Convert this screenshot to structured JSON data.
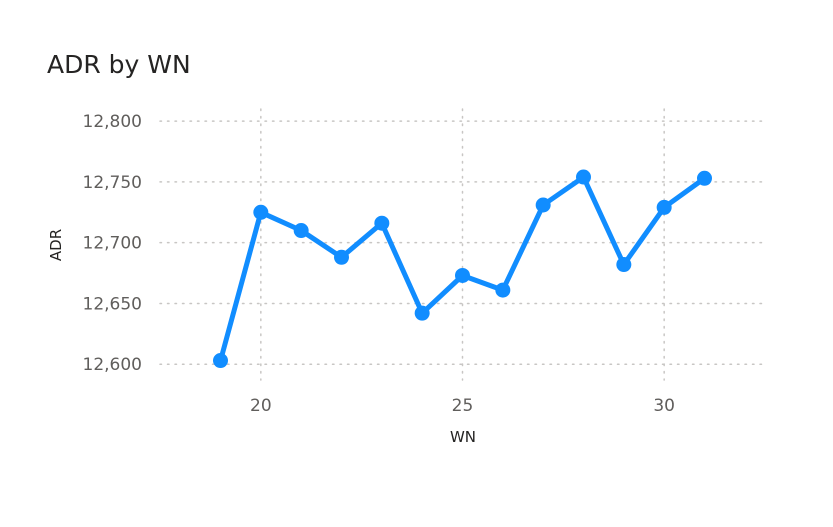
{
  "chart_data": {
    "type": "line",
    "title": "ADR by WN",
    "xlabel": "WN",
    "ylabel": "ADR",
    "xlim": [
      17.5,
      32.5
    ],
    "ylim": [
      12587,
      12810
    ],
    "x_ticks": [
      20,
      25,
      30
    ],
    "x_tick_labels": [
      "20",
      "25",
      "30"
    ],
    "y_ticks": [
      12600,
      12650,
      12700,
      12750,
      12800
    ],
    "y_tick_labels": [
      "12,600",
      "12,650",
      "12,700",
      "12,750",
      "12,800"
    ],
    "grid": true,
    "legend": "none",
    "line_color": "#118dff",
    "series": [
      {
        "x": [
          19,
          20,
          21,
          22,
          23,
          24,
          25,
          26,
          27,
          28,
          29,
          30,
          31
        ],
        "values": [
          12603,
          12725,
          12710,
          12688,
          12716,
          12642,
          12673,
          12661,
          12731,
          12754,
          12682,
          12729,
          12753
        ]
      }
    ]
  }
}
